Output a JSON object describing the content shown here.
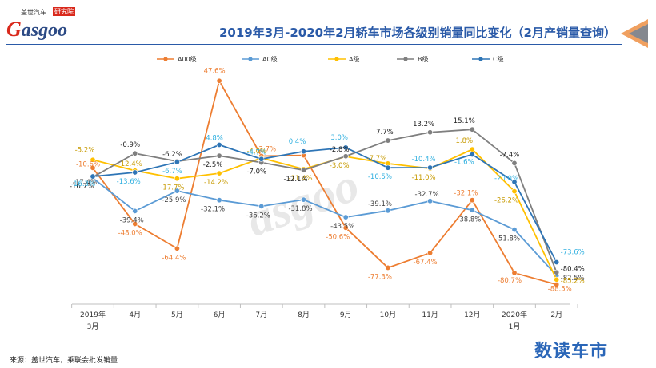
{
  "header": {
    "logo_text": "asgoo",
    "logo_tagline": "盖世汽车",
    "logo_badge": "研究院",
    "title": "2019年3月-2020年2月轿车市场各级别销量同比变化（2月产销量查询）"
  },
  "footer": {
    "source": "来源：盖世汽车，乘联会批发销量",
    "brand": "数读车市"
  },
  "colors": {
    "A00级": "#ed7d31",
    "A0级": "#5b9bd5",
    "A级": "#ffc000",
    "B级": "#7f7f7f",
    "C级": "#2e75b6",
    "label_C": "#30b0e0"
  },
  "chart_data": {
    "type": "line",
    "title": "2019年3月-2020年2月轿车市场各级别销量同比变化（2月产销量查询）",
    "categories": [
      "2019年\n3月",
      "4月",
      "5月",
      "6月",
      "7月",
      "8月",
      "9月",
      "10月",
      "11月",
      "12月",
      "2020年\n1月",
      "2月"
    ],
    "category_labels": [
      [
        "2019年",
        "3月"
      ],
      [
        "4月"
      ],
      [
        "5月"
      ],
      [
        "6月"
      ],
      [
        "7月"
      ],
      [
        "8月"
      ],
      [
        "9月"
      ],
      [
        "10月"
      ],
      [
        "11月"
      ],
      [
        "12月"
      ],
      [
        "2020年",
        "1月"
      ],
      [
        "2月"
      ]
    ],
    "ylim": [
      -100,
      60
    ],
    "legend_position": "top",
    "series": [
      {
        "name": "A00级",
        "values": [
          -10.6,
          -48.0,
          -64.4,
          47.6,
          -2.7,
          -2.2,
          -50.6,
          -77.3,
          -67.4,
          -32.1,
          -80.7,
          -88.5
        ],
        "labels": [
          "-10.6%",
          "-48.0%",
          "-64.4%",
          "47.6%",
          "-2.7%",
          "",
          "-50.6%",
          "-77.3%",
          "-67.4%",
          "-32.1%",
          "-80.7%",
          "-88.5%"
        ]
      },
      {
        "name": "A0级",
        "values": [
          -17.4,
          -39.4,
          -25.9,
          -32.1,
          -36.2,
          -31.8,
          -43.5,
          -39.1,
          -32.7,
          -38.8,
          -51.8,
          -82.5
        ],
        "labels": [
          "-17.4%",
          "-39.4%",
          "-25.9%",
          "-32.1%",
          "-36.2%",
          "-31.8%",
          "-43.5%",
          "-39.1%",
          "-32.7%",
          "-38.8%",
          "-51.8%",
          "-82.5%"
        ]
      },
      {
        "name": "A级",
        "values": [
          -5.2,
          -12.4,
          -17.7,
          -14.2,
          -4.0,
          -11.4,
          -3.0,
          -7.7,
          -11.0,
          1.8,
          -26.2,
          -85.2
        ],
        "labels": [
          "-5.2%",
          "-12.4%",
          "-17.7%",
          "-14.2%",
          "-4.0%",
          "-11.4%",
          "-3.0%",
          "-7.7%",
          "-11.0%",
          "1.8%",
          "-26.2%",
          "-85.2%"
        ]
      },
      {
        "name": "B级",
        "values": [
          -16.7,
          -0.9,
          -6.2,
          -2.5,
          -7.0,
          -12.1,
          -2.8,
          7.7,
          13.2,
          15.1,
          -7.4,
          -80.4
        ],
        "labels": [
          "-16.7%",
          "-0.9%",
          "-6.2%",
          "-2.5%",
          "-7.0%",
          "-12.1%",
          "-2.8%",
          "7.7%",
          "13.2%",
          "15.1%",
          "-7.4%",
          "-80.4%"
        ]
      },
      {
        "name": "C级",
        "values": [
          -16.3,
          -13.6,
          -6.7,
          4.8,
          -4.7,
          0.4,
          3.0,
          -10.5,
          -10.4,
          -1.6,
          -20.0,
          -73.6
        ],
        "labels": [
          "-16.3%",
          "-13.6%",
          "-6.7%",
          "4.8%",
          "-4.7%",
          "0.4%",
          "3.0%",
          "-10.5%",
          "-10.4%",
          "-1.6%",
          "-20.0%",
          "-73.6%"
        ]
      }
    ]
  }
}
